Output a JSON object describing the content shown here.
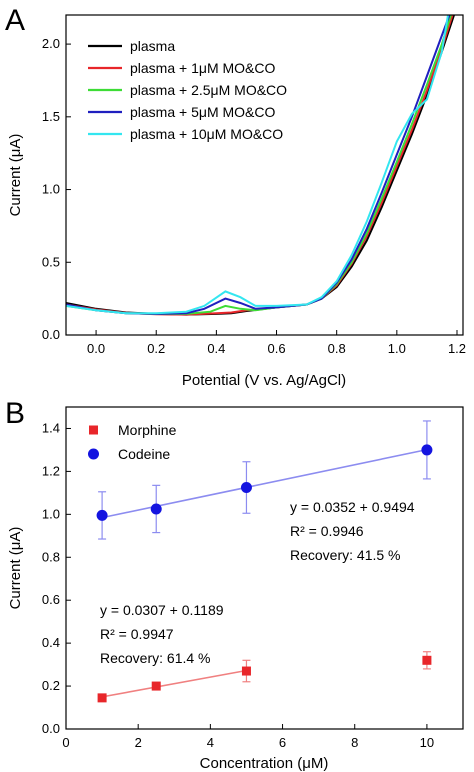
{
  "chart_data": [
    {
      "panel_label": "A",
      "type": "line",
      "xlabel": "Potential (V vs. Ag/AgCl)",
      "ylabel": "Current (μA)",
      "xlim": [
        -0.1,
        1.22
      ],
      "ylim": [
        0.0,
        2.2
      ],
      "xticks": [
        0.0,
        0.2,
        0.4,
        0.6,
        0.8,
        1.0,
        1.2
      ],
      "xtick_labels": [
        "0.0",
        "0.2",
        "0.4",
        "0.6",
        "0.8",
        "1.0",
        "1.2"
      ],
      "yticks": [
        0.0,
        0.5,
        1.0,
        1.5,
        2.0
      ],
      "ytick_labels": [
        "0.0",
        "0.5",
        "1.0",
        "1.5",
        "2.0"
      ],
      "legend_position": "top-left",
      "grid": false,
      "series": [
        {
          "name": "plasma",
          "color": "#000000",
          "points": [
            [
              -0.1,
              0.22
            ],
            [
              0.0,
              0.18
            ],
            [
              0.1,
              0.155
            ],
            [
              0.2,
              0.145
            ],
            [
              0.3,
              0.14
            ],
            [
              0.4,
              0.145
            ],
            [
              0.45,
              0.15
            ],
            [
              0.5,
              0.165
            ],
            [
              0.6,
              0.19
            ],
            [
              0.7,
              0.21
            ],
            [
              0.75,
              0.25
            ],
            [
              0.8,
              0.33
            ],
            [
              0.85,
              0.47
            ],
            [
              0.9,
              0.65
            ],
            [
              0.95,
              0.88
            ],
            [
              1.0,
              1.13
            ],
            [
              1.05,
              1.38
            ],
            [
              1.1,
              1.65
            ],
            [
              1.15,
              1.95
            ],
            [
              1.19,
              2.2
            ]
          ]
        },
        {
          "name": "plasma + 1μM MO&CO",
          "color": "#e8262a",
          "points": [
            [
              -0.1,
              0.21
            ],
            [
              0.0,
              0.175
            ],
            [
              0.1,
              0.152
            ],
            [
              0.2,
              0.142
            ],
            [
              0.3,
              0.14
            ],
            [
              0.4,
              0.15
            ],
            [
              0.45,
              0.155
            ],
            [
              0.5,
              0.17
            ],
            [
              0.6,
              0.19
            ],
            [
              0.7,
              0.21
            ],
            [
              0.75,
              0.25
            ],
            [
              0.8,
              0.34
            ],
            [
              0.85,
              0.49
            ],
            [
              0.9,
              0.68
            ],
            [
              0.95,
              0.91
            ],
            [
              1.0,
              1.16
            ],
            [
              1.05,
              1.41
            ],
            [
              1.1,
              1.68
            ],
            [
              1.15,
              1.97
            ],
            [
              1.185,
              2.2
            ]
          ]
        },
        {
          "name": "plasma + 2.5μM MO&CO",
          "color": "#3ddc35",
          "points": [
            [
              -0.1,
              0.2
            ],
            [
              0.0,
              0.17
            ],
            [
              0.1,
              0.15
            ],
            [
              0.2,
              0.145
            ],
            [
              0.3,
              0.145
            ],
            [
              0.38,
              0.16
            ],
            [
              0.43,
              0.2
            ],
            [
              0.48,
              0.18
            ],
            [
              0.53,
              0.17
            ],
            [
              0.6,
              0.19
            ],
            [
              0.7,
              0.21
            ],
            [
              0.75,
              0.25
            ],
            [
              0.8,
              0.35
            ],
            [
              0.85,
              0.5
            ],
            [
              0.9,
              0.7
            ],
            [
              0.95,
              0.94
            ],
            [
              1.0,
              1.19
            ],
            [
              1.05,
              1.45
            ],
            [
              1.1,
              1.72
            ],
            [
              1.15,
              2.0
            ],
            [
              1.18,
              2.2
            ]
          ]
        },
        {
          "name": "plasma + 5μM MO&CO",
          "color": "#1f1fbf",
          "points": [
            [
              -0.1,
              0.21
            ],
            [
              0.0,
              0.17
            ],
            [
              0.1,
              0.15
            ],
            [
              0.2,
              0.145
            ],
            [
              0.3,
              0.15
            ],
            [
              0.36,
              0.18
            ],
            [
              0.43,
              0.25
            ],
            [
              0.48,
              0.22
            ],
            [
              0.53,
              0.18
            ],
            [
              0.6,
              0.19
            ],
            [
              0.7,
              0.21
            ],
            [
              0.75,
              0.25
            ],
            [
              0.8,
              0.36
            ],
            [
              0.85,
              0.52
            ],
            [
              0.9,
              0.73
            ],
            [
              0.95,
              0.98
            ],
            [
              1.0,
              1.24
            ],
            [
              1.05,
              1.5
            ],
            [
              1.1,
              1.78
            ],
            [
              1.15,
              2.06
            ],
            [
              1.175,
              2.2
            ]
          ]
        },
        {
          "name": "plasma + 10μM MO&CO",
          "color": "#33e6f0",
          "points": [
            [
              -0.1,
              0.2
            ],
            [
              0.0,
              0.17
            ],
            [
              0.1,
              0.15
            ],
            [
              0.2,
              0.15
            ],
            [
              0.3,
              0.16
            ],
            [
              0.36,
              0.2
            ],
            [
              0.43,
              0.3
            ],
            [
              0.48,
              0.26
            ],
            [
              0.53,
              0.2
            ],
            [
              0.6,
              0.2
            ],
            [
              0.7,
              0.21
            ],
            [
              0.75,
              0.26
            ],
            [
              0.8,
              0.37
            ],
            [
              0.85,
              0.55
            ],
            [
              0.9,
              0.78
            ],
            [
              0.95,
              1.05
            ],
            [
              1.0,
              1.33
            ],
            [
              1.05,
              1.52
            ],
            [
              1.1,
              1.62
            ],
            [
              1.15,
              1.95
            ],
            [
              1.17,
              2.2
            ]
          ]
        }
      ]
    },
    {
      "panel_label": "B",
      "type": "scatter",
      "xlabel": "Concentration (μM)",
      "ylabel": "Current (μA)",
      "xlim": [
        0,
        11
      ],
      "ylim": [
        0.0,
        1.5
      ],
      "xticks": [
        0,
        2,
        4,
        6,
        8,
        10
      ],
      "xtick_labels": [
        "0",
        "2",
        "4",
        "6",
        "8",
        "10"
      ],
      "yticks": [
        0.0,
        0.2,
        0.4,
        0.6,
        0.8,
        1.0,
        1.2,
        1.4
      ],
      "ytick_labels": [
        "0.0",
        "0.2",
        "0.4",
        "0.6",
        "0.8",
        "1.0",
        "1.2",
        "1.4"
      ],
      "legend_position": "top-left",
      "grid": false,
      "series": [
        {
          "name": "Morphine",
          "color": "#e8262a",
          "marker": "square",
          "line_color": "#f08080",
          "x": [
            1,
            2.5,
            5,
            10
          ],
          "y": [
            0.145,
            0.2,
            0.27,
            0.32
          ],
          "error": [
            0.015,
            0.015,
            0.05,
            0.04
          ],
          "fit": {
            "x": [
              1,
              5
            ],
            "slope": 0.0307,
            "intercept": 0.1189
          }
        },
        {
          "name": "Codeine",
          "color": "#1414e0",
          "marker": "circle",
          "line_color": "#8c8cf0",
          "x": [
            1,
            2.5,
            5,
            10
          ],
          "y": [
            0.995,
            1.025,
            1.125,
            1.3
          ],
          "error": [
            0.11,
            0.11,
            0.12,
            0.135
          ],
          "fit": {
            "x": [
              1,
              10
            ],
            "slope": 0.0352,
            "intercept": 0.9494
          }
        }
      ],
      "annotations": [
        {
          "lines": [
            "y = 0.0352 + 0.9494",
            "R² = 0.9946",
            "Recovery: 41.5 %"
          ]
        },
        {
          "lines": [
            "y = 0.0307 + 0.1189",
            "R² = 0.9947",
            "Recovery: 61.4 %"
          ]
        }
      ]
    }
  ]
}
